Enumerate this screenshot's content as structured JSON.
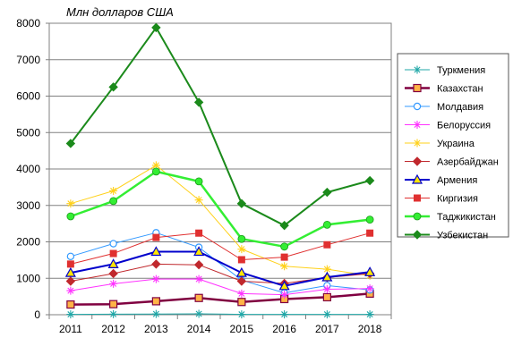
{
  "chart_data": {
    "type": "line",
    "unit_label": "Млн долларов США",
    "x": [
      "2011",
      "2012",
      "2013",
      "2014",
      "2015",
      "2016",
      "2017",
      "2018"
    ],
    "ylim": [
      0,
      8000
    ],
    "yticks": [
      "0",
      "1000",
      "2000",
      "3000",
      "4000",
      "5000",
      "6000",
      "7000",
      "8000"
    ],
    "grid": "horizontal",
    "legend_position": "right",
    "series": [
      {
        "name": "Туркмения",
        "color": "#1FA7A7",
        "marker": "star",
        "width": 1,
        "values": [
          10,
          15,
          20,
          25,
          10,
          10,
          10,
          10
        ]
      },
      {
        "name": "Казахстан",
        "color": "#800040",
        "marker": "square-orange",
        "width": 2.5,
        "values": [
          280,
          290,
          370,
          460,
          350,
          430,
          480,
          580
        ]
      },
      {
        "name": "Молдавия",
        "color": "#3399FF",
        "marker": "circle-open",
        "width": 1,
        "values": [
          1600,
          1950,
          2250,
          1850,
          950,
          600,
          800,
          680
        ]
      },
      {
        "name": "Белоруссия",
        "color": "#FF33FF",
        "marker": "star",
        "width": 1,
        "values": [
          660,
          850,
          980,
          980,
          580,
          550,
          700,
          720
        ]
      },
      {
        "name": "Украина",
        "color": "#FFD11A",
        "marker": "star",
        "width": 1,
        "values": [
          3050,
          3400,
          4100,
          3150,
          1800,
          1330,
          1250,
          1070
        ]
      },
      {
        "name": "Азербайджан",
        "color": "#C0282D",
        "marker": "diamond",
        "width": 1,
        "values": [
          920,
          1130,
          1390,
          1370,
          920,
          860,
          1020,
          1130
        ]
      },
      {
        "name": "Армения",
        "color": "#0000CC",
        "marker": "triangle-yellow",
        "width": 2,
        "values": [
          1150,
          1390,
          1730,
          1730,
          1150,
          790,
          1030,
          1170
        ]
      },
      {
        "name": "Киргизия",
        "color": "#E03030",
        "marker": "square",
        "width": 1,
        "values": [
          1390,
          1680,
          2120,
          2240,
          1510,
          1580,
          1920,
          2240
        ]
      },
      {
        "name": "Таджикистан",
        "color": "#33EE33",
        "marker": "circle",
        "width": 2.5,
        "values": [
          2700,
          3120,
          3930,
          3660,
          2080,
          1870,
          2470,
          2610
        ]
      },
      {
        "name": "Узбекистан",
        "color": "#1B8A1B",
        "marker": "diamond",
        "width": 2,
        "values": [
          4700,
          6250,
          7880,
          5830,
          3050,
          2450,
          3360,
          3680
        ]
      }
    ]
  }
}
